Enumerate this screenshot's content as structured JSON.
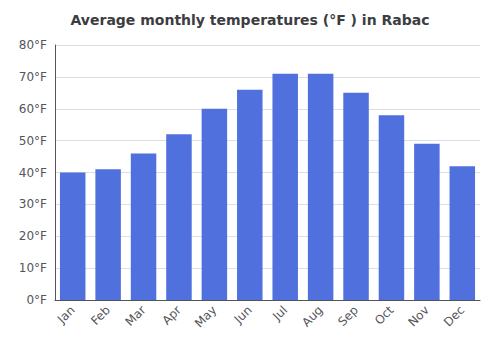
{
  "chart_data": {
    "type": "bar",
    "title": "Average monthly temperatures (°F ) in Rabac",
    "categories": [
      "Jan",
      "Feb",
      "Mar",
      "Apr",
      "May",
      "Jun",
      "Jul",
      "Aug",
      "Sep",
      "Oct",
      "Nov",
      "Dec"
    ],
    "values": [
      40,
      41,
      46,
      52,
      60,
      66,
      71,
      71,
      65,
      58,
      49,
      42
    ],
    "ylim": [
      0,
      80
    ],
    "yticks": [
      {
        "value": 0,
        "label": "0°F"
      },
      {
        "value": 10,
        "label": "10°F"
      },
      {
        "value": 20,
        "label": "20°F"
      },
      {
        "value": 30,
        "label": "30°F"
      },
      {
        "value": 40,
        "label": "40°F"
      },
      {
        "value": 50,
        "label": "50°F"
      },
      {
        "value": 60,
        "label": "60°F"
      },
      {
        "value": 70,
        "label": "70°F"
      },
      {
        "value": 80,
        "label": "80°F"
      }
    ],
    "grid": true
  }
}
